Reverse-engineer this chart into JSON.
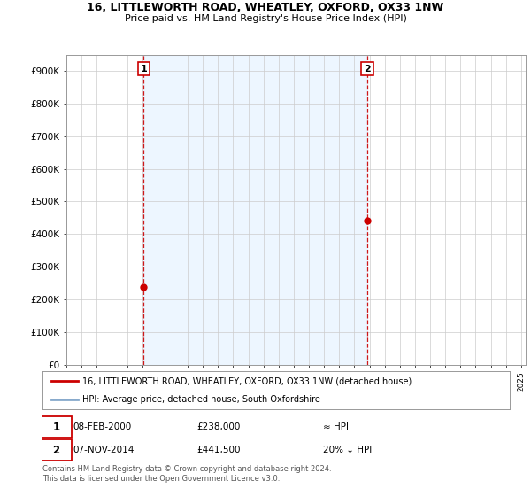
{
  "title": "16, LITTLEWORTH ROAD, WHEATLEY, OXFORD, OX33 1NW",
  "subtitle": "Price paid vs. HM Land Registry's House Price Index (HPI)",
  "ylabel_ticks": [
    "£0",
    "£100K",
    "£200K",
    "£300K",
    "£400K",
    "£500K",
    "£600K",
    "£700K",
    "£800K",
    "£900K"
  ],
  "ytick_values": [
    0,
    100000,
    200000,
    300000,
    400000,
    500000,
    600000,
    700000,
    800000,
    900000
  ],
  "ylim": [
    0,
    950000
  ],
  "sale1_date": "08-FEB-2000",
  "sale1_price": 238000,
  "sale1_x": 2000.1,
  "sale2_date": "07-NOV-2014",
  "sale2_price": 441500,
  "sale2_x": 2014.85,
  "legend_line1": "16, LITTLEWORTH ROAD, WHEATLEY, OXFORD, OX33 1NW (detached house)",
  "legend_line2": "HPI: Average price, detached house, South Oxfordshire",
  "footer": "Contains HM Land Registry data © Crown copyright and database right 2024.\nThis data is licensed under the Open Government Licence v3.0.",
  "line_color_red": "#cc0000",
  "line_color_blue": "#88aacc",
  "fill_color_blue": "#ddeeff",
  "vline_color": "#cc0000",
  "background_color": "#ffffff",
  "grid_color": "#cccccc"
}
